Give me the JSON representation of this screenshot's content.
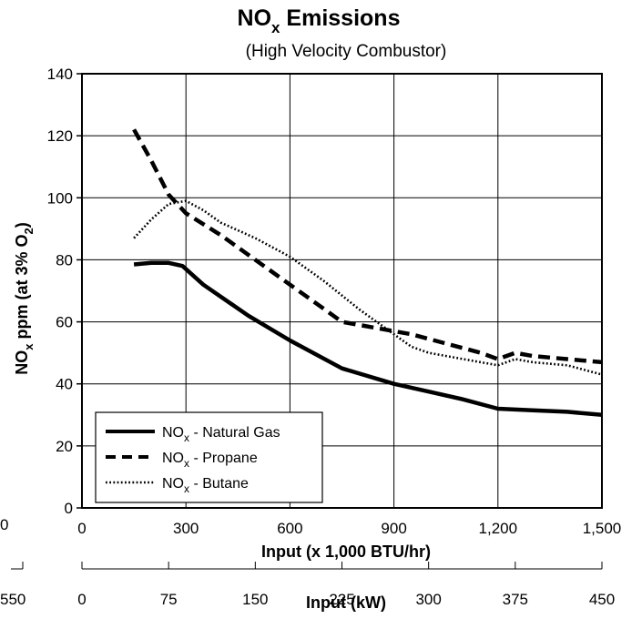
{
  "chart_data": {
    "type": "line",
    "title_main": "NO",
    "title_sub": "x",
    "title_rest": " Emissions",
    "subtitle": "(High Velocity Combustor)",
    "xlabel": "Input  (x 1,000 BTU/hr)",
    "x2label": "Input (kW)",
    "ylabel_a": "NO",
    "ylabel_a_sub": "x",
    "ylabel_b": " ppm (at 3% O",
    "ylabel_b_sub": "2",
    "ylabel_c": ")",
    "xlim": [
      0,
      1500
    ],
    "ylim": [
      0,
      140
    ],
    "x_ticks": [
      "0",
      "300",
      "600",
      "900",
      "1,200",
      "1,500"
    ],
    "x_tick_values": [
      0,
      300,
      600,
      900,
      1200,
      1500
    ],
    "y_ticks": [
      "0",
      "20",
      "40",
      "60",
      "80",
      "100",
      "120",
      "140"
    ],
    "y_tick_values": [
      0,
      20,
      40,
      60,
      80,
      100,
      120,
      140
    ],
    "x2_ticks": [
      "0",
      "75",
      "150",
      "225",
      "300",
      "375",
      "450"
    ],
    "x2_tick_values": [
      0,
      75,
      150,
      225,
      300,
      375,
      450
    ],
    "x2lim": [
      0,
      450
    ],
    "left_cut_labels": [
      "0",
      "550"
    ],
    "grid": true,
    "legend_placement": "bottom-left",
    "series": [
      {
        "name_main": "NO",
        "name_sub": "x",
        "name_rest": " - Natural Gas",
        "style": "solid",
        "x": [
          150,
          200,
          250,
          290,
          350,
          480,
          600,
          750,
          900,
          1000,
          1100,
          1200,
          1300,
          1400,
          1500
        ],
        "y": [
          78.5,
          79,
          79,
          78,
          72,
          62,
          54,
          45,
          40,
          37.5,
          35,
          32,
          31.5,
          31,
          30
        ]
      },
      {
        "name_main": "NO",
        "name_sub": "x",
        "name_rest": " - Propane",
        "style": "dashed",
        "x": [
          150,
          200,
          250,
          300,
          400,
          500,
          600,
          700,
          750,
          850,
          950,
          1050,
          1150,
          1200,
          1250,
          1300,
          1400,
          1500
        ],
        "y": [
          122,
          112,
          101,
          95,
          88,
          80,
          72,
          64,
          60,
          58,
          56,
          53,
          50,
          48,
          50,
          49,
          48,
          47
        ]
      },
      {
        "name_main": "NO",
        "name_sub": "x",
        "name_rest": " - Butane",
        "style": "dotted",
        "x": [
          150,
          200,
          250,
          300,
          350,
          400,
          500,
          600,
          700,
          800,
          850,
          900,
          950,
          1000,
          1100,
          1200,
          1250,
          1300,
          1400,
          1500
        ],
        "y": [
          87,
          93,
          98,
          99,
          96,
          92,
          87,
          81,
          73,
          64,
          60,
          56,
          52,
          50,
          48,
          46,
          48,
          47,
          46,
          43
        ]
      }
    ]
  }
}
